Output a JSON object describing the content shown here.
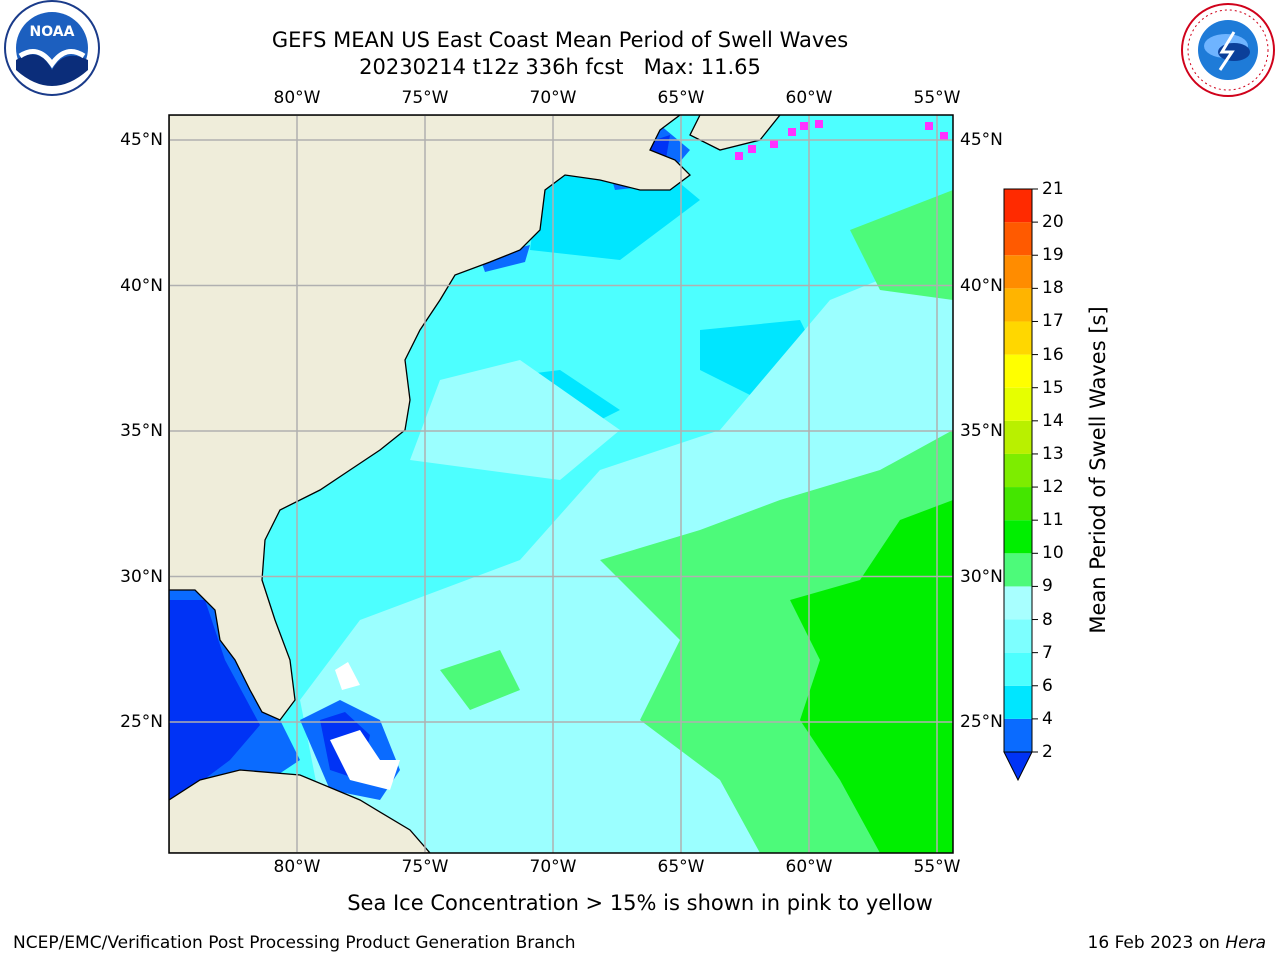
{
  "header": {
    "title_line1": "GEFS MEAN US East Coast Mean Period of Swell Waves",
    "title_line2": "20230214 t12z 336h fcst   Max: 11.65"
  },
  "logos": {
    "left": {
      "text": "NOAA",
      "icon": "noaa-logo-icon"
    },
    "right": {
      "text": "NATIONAL WEATHER SERVICE",
      "icon": "nws-logo-icon"
    }
  },
  "map": {
    "lon_labels": [
      "80°W",
      "75°W",
      "70°W",
      "65°W",
      "60°W",
      "55°W"
    ],
    "lat_labels": [
      "45°N",
      "40°N",
      "35°N",
      "30°N",
      "25°N"
    ],
    "lon_values": [
      -80,
      -75,
      -70,
      -65,
      -60,
      -55
    ],
    "lat_values": [
      45,
      40,
      35,
      30,
      25
    ],
    "colors": {
      "land": "#efedda",
      "ocean_cyan": "#4dffff",
      "ocean_cyan_deep": "#00e6ff",
      "ocean_light": "#9bffff",
      "ocean_green": "#4dfa7a",
      "ocean_bright_green": "#00ef00",
      "shelf_blue": "#0a6bff",
      "shelf_deep_blue": "#0033f5",
      "sea_ice": "#ff33ff",
      "grid": "#b0b0b0"
    }
  },
  "colorbar": {
    "title": "Mean Period of Swell Waves [s]",
    "labels": [
      "2",
      "4",
      "6",
      "7",
      "8",
      "9",
      "10",
      "11",
      "12",
      "13",
      "14",
      "15",
      "16",
      "17",
      "18",
      "19",
      "20",
      "21"
    ],
    "colors": [
      "#0a6bff",
      "#00e6ff",
      "#4dffff",
      "#7dffff",
      "#a8ffff",
      "#4dfa7a",
      "#00ef00",
      "#44e600",
      "#7ded00",
      "#b9f000",
      "#e6ff00",
      "#ffff00",
      "#ffd700",
      "#ffb400",
      "#ff8c00",
      "#ff5a00",
      "#ff2a00",
      "#ff0000"
    ],
    "under_color": "#0033f5"
  },
  "notes": {
    "sea_ice": "Sea Ice Concentration > 15% is shown in pink to yellow"
  },
  "footer": {
    "left": "NCEP/EMC/Verification Post Processing Product Generation Branch",
    "date": "16 Feb 2023 on ",
    "machine": "Hera"
  }
}
